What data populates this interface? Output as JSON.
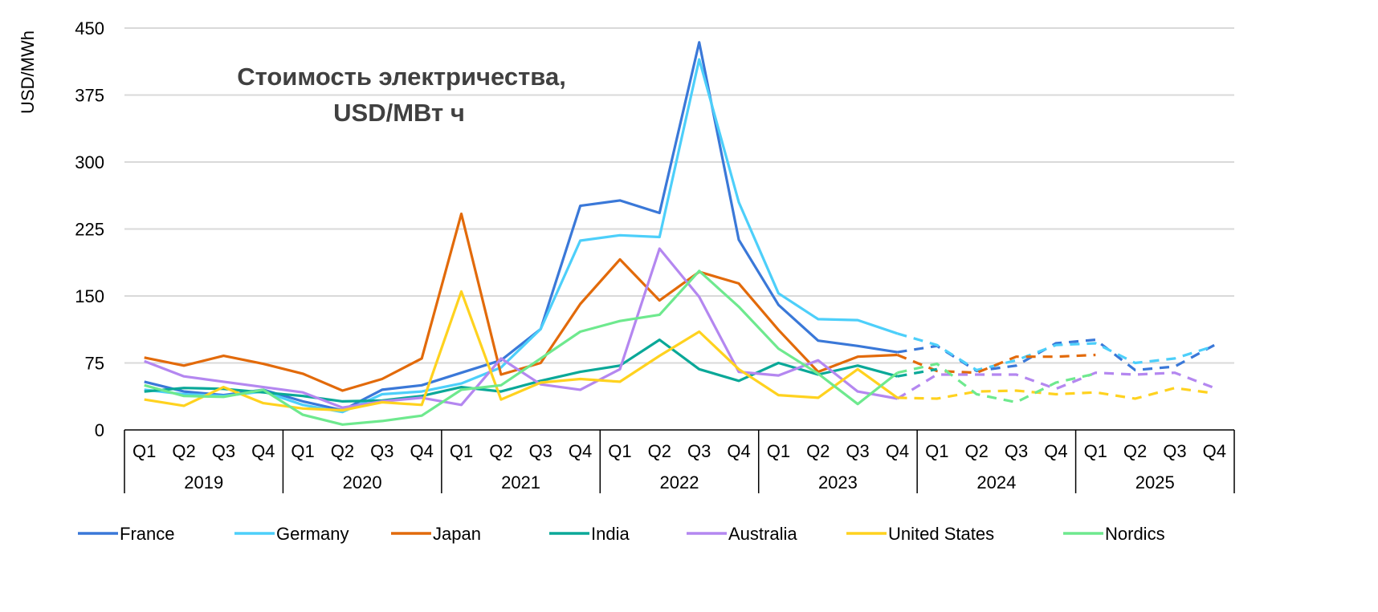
{
  "chart_data": {
    "type": "line",
    "title": "Стоимость электричества,",
    "title_line2": "USD/МВт ч",
    "ylabel": "USD/MWh",
    "xlabel": "",
    "ylim": [
      0,
      450
    ],
    "yticks": [
      "0",
      "75",
      "150",
      "225",
      "300",
      "375",
      "450"
    ],
    "grid": true,
    "legend_position": "bottom",
    "years": [
      "2019",
      "2020",
      "2021",
      "2022",
      "2023",
      "2024",
      "2025"
    ],
    "quarters": [
      "Q1",
      "Q2",
      "Q3",
      "Q4"
    ],
    "forecast_from_index": 19,
    "series": [
      {
        "name": "France",
        "color": "#3a78d8",
        "values": [
          54,
          43,
          39,
          45,
          32,
          22,
          45,
          50,
          64,
          78,
          113,
          251,
          257,
          243,
          434,
          213,
          140,
          100,
          94,
          87,
          94,
          66,
          72,
          97,
          101,
          67,
          71,
          95
        ]
      },
      {
        "name": "Germany",
        "color": "#4dcffa",
        "values": [
          45,
          40,
          38,
          43,
          28,
          20,
          40,
          43,
          52,
          70,
          113,
          212,
          218,
          216,
          415,
          255,
          153,
          124,
          123,
          108,
          95,
          67,
          78,
          95,
          97,
          75,
          80,
          94
        ]
      },
      {
        "name": "Japan",
        "color": "#e26a0a",
        "values": [
          81,
          72,
          83,
          74,
          63,
          44,
          57,
          80,
          242,
          62,
          75,
          141,
          191,
          145,
          177,
          164,
          112,
          65,
          82,
          84,
          66,
          64,
          82,
          82,
          84,
          null,
          null,
          null
        ]
      },
      {
        "name": "India",
        "color": "#0aa898",
        "values": [
          43,
          47,
          46,
          42,
          38,
          32,
          33,
          38,
          48,
          43,
          55,
          65,
          72,
          101,
          68,
          55,
          75,
          62,
          72,
          60,
          68,
          null,
          null,
          null,
          null,
          null,
          null,
          null
        ]
      },
      {
        "name": "Australia",
        "color": "#b487f0",
        "values": [
          77,
          60,
          54,
          48,
          42,
          25,
          32,
          36,
          28,
          80,
          51,
          45,
          68,
          203,
          149,
          65,
          61,
          78,
          43,
          35,
          62,
          62,
          62,
          46,
          64,
          62,
          64,
          47
        ]
      },
      {
        "name": "United States",
        "color": "#ffd21f",
        "values": [
          34,
          27,
          48,
          30,
          24,
          22,
          31,
          28,
          155,
          34,
          53,
          57,
          54,
          83,
          110,
          68,
          39,
          36,
          68,
          36,
          35,
          43,
          44,
          40,
          42,
          35,
          47,
          41
        ]
      },
      {
        "name": "Nordics",
        "color": "#6ee98e",
        "values": [
          50,
          38,
          37,
          45,
          17,
          6,
          10,
          16,
          45,
          50,
          80,
          110,
          122,
          129,
          178,
          138,
          91,
          63,
          29,
          64,
          74,
          40,
          31,
          53,
          63,
          null,
          null,
          null
        ]
      }
    ]
  }
}
